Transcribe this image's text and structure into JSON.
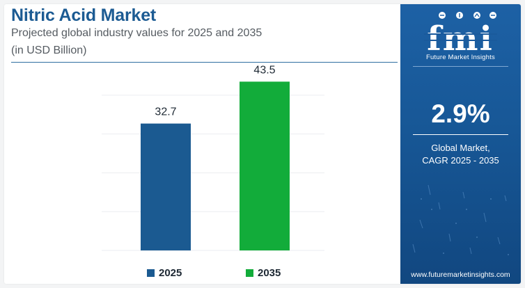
{
  "header": {
    "title": "Nitric Acid Market",
    "subtitle_line1": "Projected global industry values for 2025 and 2035",
    "subtitle_line2": "(in USD Billion)"
  },
  "chart_data": {
    "type": "bar",
    "categories": [
      "2025",
      "2035"
    ],
    "values": [
      32.7,
      43.5
    ],
    "data_labels": [
      "32.7",
      "43.5"
    ],
    "colors": [
      "#1b5a91",
      "#12ac3a"
    ],
    "ylim": [
      0,
      45
    ],
    "grid": true,
    "legend": {
      "placement": "bottom",
      "entries": [
        {
          "label": "2025",
          "color": "#1b5a91"
        },
        {
          "label": "2035",
          "color": "#12ac3a"
        }
      ]
    }
  },
  "sidebar": {
    "brand": "fmi",
    "tagline": "Future Market Insights",
    "cagr_value": "2.9%",
    "cagr_label_line1": "Global Market,",
    "cagr_label_line2": "CAGR 2025 - 2035",
    "website": "www.futuremarketinsights.com",
    "background": "#175796"
  }
}
